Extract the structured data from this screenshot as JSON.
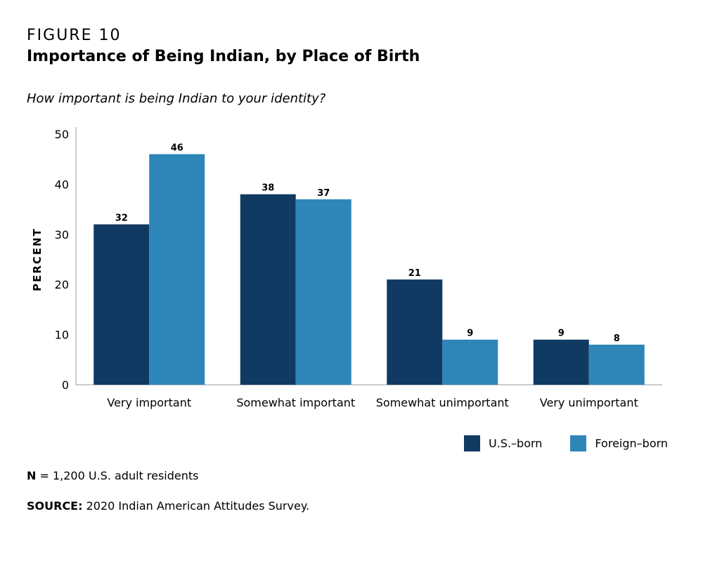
{
  "figure": {
    "label": "FIGURE 10",
    "title": "Importance of Being Indian, by Place of Birth",
    "subtitle": "How important is being Indian to your identity?"
  },
  "chart_data": {
    "type": "bar",
    "categories": [
      "Very important",
      "Somewhat important",
      "Somewhat unimportant",
      "Very unimportant"
    ],
    "series": [
      {
        "name": "U.S.–born",
        "values": [
          32,
          38,
          21,
          9
        ],
        "color": "#113a62"
      },
      {
        "name": "Foreign–born",
        "values": [
          46,
          37,
          9,
          8
        ],
        "color": "#2e86b8"
      }
    ],
    "ylabel": "PERCENT",
    "xlabel": "",
    "ylim": [
      0,
      50
    ],
    "yticks": [
      0,
      10,
      20,
      30,
      40,
      50
    ],
    "grid": false,
    "legend": "bottom-right",
    "data_labels": true
  },
  "notes": {
    "n_label": "N",
    "n_text": "= 1,200 U.S. adult residents",
    "source_label": "SOURCE:",
    "source_text": "2020 Indian American Attitudes Survey."
  }
}
